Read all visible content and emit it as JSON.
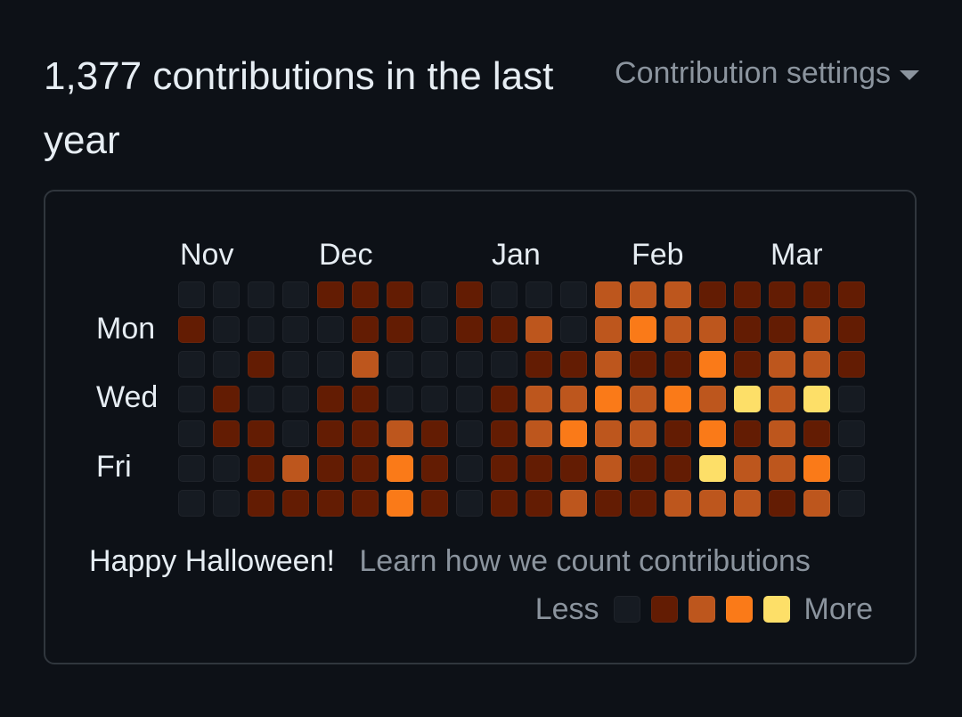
{
  "header": {
    "title": "1,377 contributions in the last year",
    "settings_label": "Contribution settings"
  },
  "calendar": {
    "months": [
      "Nov",
      "Dec",
      "Jan",
      "Feb",
      "Mar"
    ],
    "day_labels": [
      "Mon",
      "Wed",
      "Fri"
    ],
    "levels": [
      [
        0,
        1,
        0,
        0,
        0,
        0,
        0
      ],
      [
        0,
        0,
        0,
        1,
        1,
        0,
        0
      ],
      [
        0,
        0,
        1,
        0,
        1,
        1,
        1
      ],
      [
        0,
        0,
        0,
        0,
        0,
        2,
        1
      ],
      [
        1,
        0,
        0,
        1,
        1,
        1,
        1
      ],
      [
        1,
        1,
        2,
        1,
        1,
        1,
        1
      ],
      [
        1,
        1,
        0,
        0,
        2,
        3,
        3
      ],
      [
        0,
        0,
        0,
        0,
        1,
        1,
        1
      ],
      [
        1,
        1,
        0,
        0,
        0,
        0,
        0
      ],
      [
        0,
        1,
        0,
        1,
        1,
        1,
        1
      ],
      [
        0,
        2,
        1,
        2,
        2,
        1,
        1
      ],
      [
        0,
        0,
        1,
        2,
        3,
        1,
        2
      ],
      [
        2,
        2,
        2,
        3,
        2,
        2,
        1
      ],
      [
        2,
        3,
        1,
        2,
        2,
        1,
        1
      ],
      [
        2,
        2,
        1,
        3,
        1,
        1,
        2
      ],
      [
        1,
        2,
        3,
        2,
        3,
        4,
        2
      ],
      [
        1,
        1,
        1,
        4,
        1,
        2,
        2
      ],
      [
        1,
        1,
        2,
        2,
        2,
        2,
        1
      ],
      [
        1,
        2,
        2,
        4,
        1,
        3,
        2
      ],
      [
        1,
        1,
        1,
        0,
        0,
        0,
        0
      ]
    ]
  },
  "footer": {
    "greeting": "Happy Halloween!",
    "learn_link": "Learn how we count contributions"
  },
  "legend": {
    "less": "Less",
    "more": "More",
    "levels": [
      0,
      1,
      2,
      3,
      4
    ]
  },
  "colors": {
    "level0": "#161b22",
    "level1": "#631c03",
    "level2": "#bd561d",
    "level3": "#fa7a18",
    "level4": "#fddf68"
  }
}
